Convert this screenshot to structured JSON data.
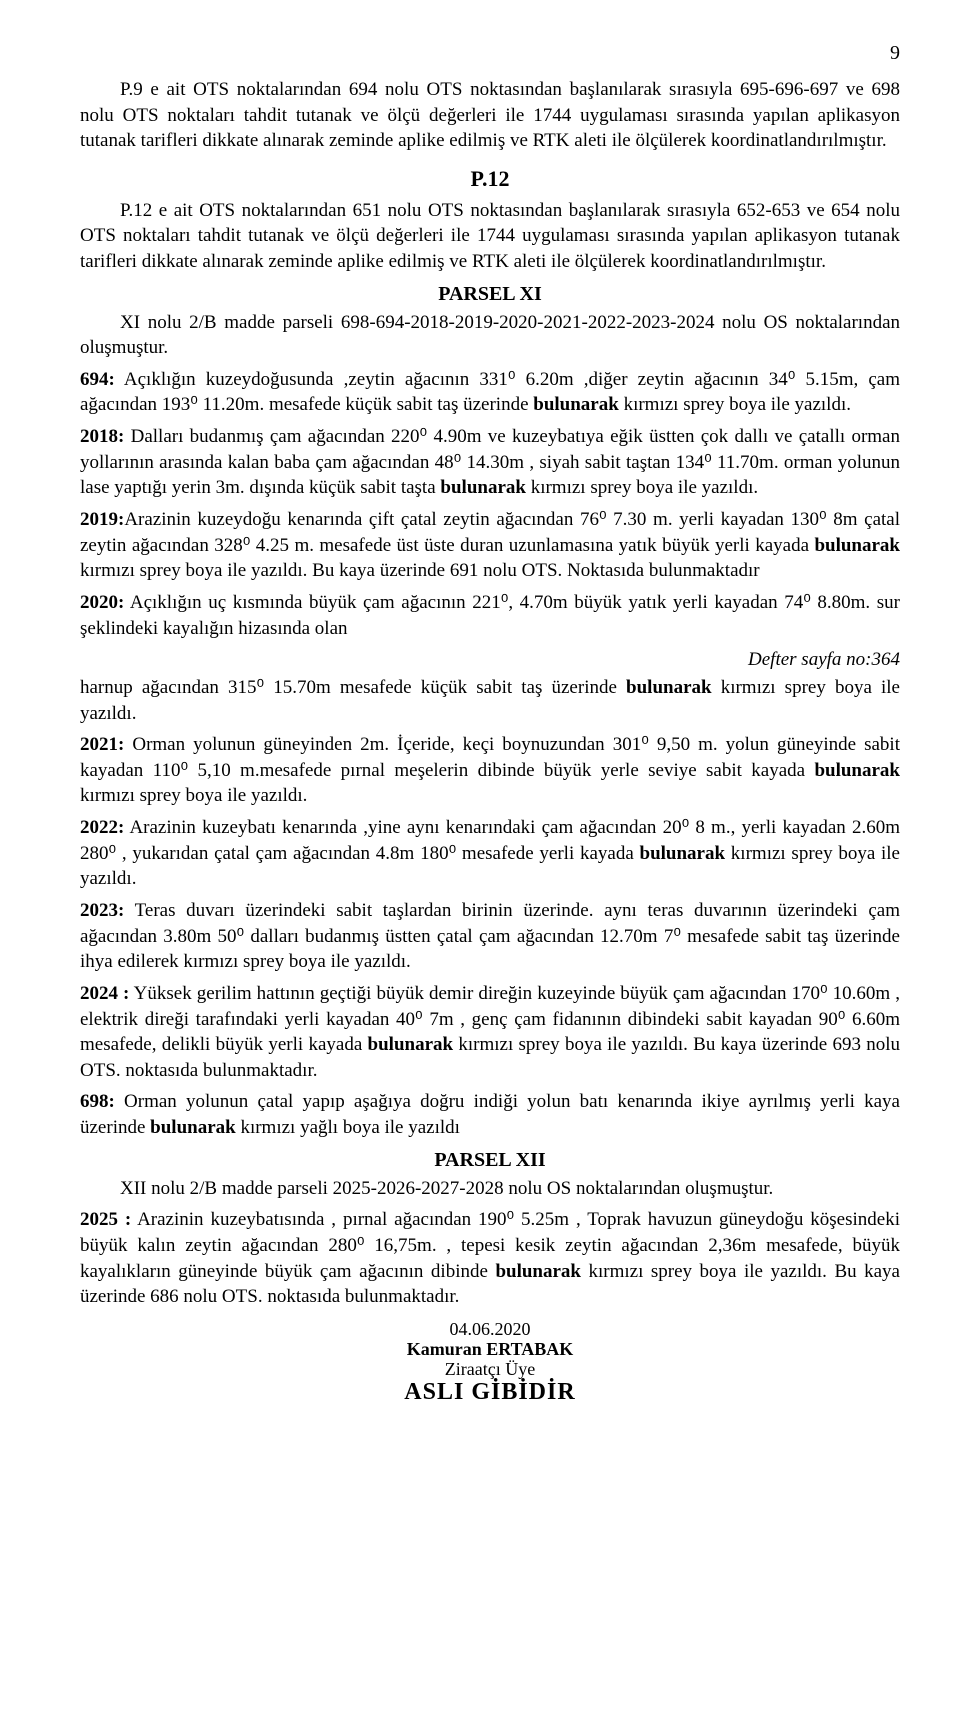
{
  "page_number": "9",
  "p9": "P.9 e ait OTS noktalarından 694 nolu OTS noktasından başlanılarak sırasıyla 695-696-697 ve 698 nolu OTS noktaları tahdit tutanak ve ölçü değerleri ile 1744 uygulaması sırasında yapılan aplikasyon tutanak tarifleri dikkate alınarak zeminde aplike edilmiş ve RTK aleti ile ölçülerek koordinatlandırılmıştır.",
  "heading_p12": "P.12",
  "p12": "P.12 e ait OTS noktalarından 651 nolu OTS noktasından başlanılarak sırasıyla 652-653 ve 654 nolu OTS noktaları tahdit tutanak ve ölçü değerleri ile 1744 uygulaması sırasında yapılan aplikasyon tutanak tarifleri dikkate alınarak zeminde aplike edilmiş ve RTK aleti ile ölçülerek koordinatlandırılmıştır.",
  "parsel_xi_heading": "PARSEL XI",
  "parsel_xi_intro": "XI nolu 2/B madde parseli 698-694-2018-2019-2020-2021-2022-2023-2024 nolu OS noktalarından oluşmuştur.",
  "e694_a": "694:",
  "e694_b": " Açıklığın kuzeydoğusunda ,zeytin ağacının 331⁰ 6.20m ,diğer zeytin ağacının 34⁰ 5.15m, çam ağacından 193⁰ 11.20m. mesafede küçük sabit taş üzerinde ",
  "e694_c": "bulunarak",
  "e694_d": " kırmızı sprey boya ile yazıldı.",
  "e2018_a": "2018:",
  "e2018_b": " Dalları budanmış çam ağacından 220⁰ 4.90m ve kuzeybatıya eğik üstten çok dallı ve çatallı orman yollarının arasında kalan baba çam ağacından 48⁰ 14.30m , siyah sabit taştan 134⁰ 11.70m. orman yolunun lase yaptığı yerin 3m. dışında küçük sabit taşta ",
  "e2018_c": "bulunarak",
  "e2018_d": " kırmızı sprey boya ile yazıldı.",
  "e2019_a": "2019:",
  "e2019_b": "Arazinin kuzeydoğu kenarında çift çatal zeytin ağacından 76⁰ 7.30 m. yerli kayadan 130⁰ 8m çatal zeytin ağacından 328⁰ 4.25 m. mesafede üst üste duran uzunlamasına yatık büyük yerli kayada ",
  "e2019_c": "bulunarak",
  "e2019_d": " kırmızı sprey boya ile yazıldı. Bu kaya üzerinde 691 nolu OTS. Noktasıda bulunmaktadır",
  "e2020_a": "2020:",
  "e2020_b": " Açıklığın uç kısmında büyük çam ağacının 221⁰, 4.70m büyük yatık yerli kayadan 74⁰ 8.80m. sur şeklindeki kayalığın hizasında olan",
  "defter": "Defter sayfa no:364",
  "e2020_cont_a": "harnup ağacından 315⁰ 15.70m mesafede küçük sabit taş üzerinde ",
  "e2020_cont_b": "bulunarak",
  "e2020_cont_c": " kırmızı sprey boya ile yazıldı.",
  "e2021_a": "2021:",
  "e2021_b": " Orman yolunun güneyinden 2m. İçeride, keçi boynuzundan 301⁰ 9,50 m. yolun güneyinde sabit kayadan 110⁰ 5,10 m.mesafede pırnal meşelerin dibinde büyük yerle seviye sabit kayada ",
  "e2021_c": "bulunarak",
  "e2021_d": " kırmızı sprey boya ile yazıldı.",
  "e2022_a": "2022:",
  "e2022_b": " Arazinin kuzeybatı kenarında ,yine aynı kenarındaki çam ağacından 20⁰ 8 m., yerli kayadan 2.60m 280⁰ , yukarıdan çatal çam ağacından 4.8m 180⁰ mesafede yerli kayada ",
  "e2022_c": "bulunarak",
  "e2022_d": " kırmızı sprey boya ile yazıldı.",
  "e2023_a": "2023:",
  "e2023_b": "  Teras duvarı üzerindeki sabit taşlardan birinin üzerinde. aynı teras duvarının üzerindeki çam ağacından 3.80m 50⁰ dalları budanmış üstten çatal çam ağacından 12.70m 7⁰ mesafede sabit taş üzerinde ihya edilerek kırmızı sprey boya ile yazıldı.",
  "e2024_a": "2024 :",
  "e2024_b": " Yüksek gerilim hattının geçtiği büyük demir direğin kuzeyinde büyük çam ağacından 170⁰ 10.60m , elektrik direği tarafındaki yerli kayadan 40⁰ 7m , genç çam fidanının dibindeki sabit kayadan 90⁰ 6.60m mesafede, delikli büyük yerli kayada ",
  "e2024_c": "bulunarak",
  "e2024_d": " kırmızı sprey boya ile yazıldı. Bu kaya üzerinde 693 nolu OTS. noktasıda bulunmaktadır.",
  "e698_a": "698:",
  "e698_b": " Orman yolunun çatal yapıp aşağıya doğru indiği yolun batı kenarında ikiye ayrılmış yerli kaya üzerinde ",
  "e698_c": "bulunarak",
  "e698_d": " kırmızı yağlı boya ile yazıldı",
  "parsel_xii_heading": "PARSEL XII",
  "parsel_xii_intro": "XII nolu 2/B madde parseli 2025-2026-2027-2028 nolu OS noktalarından oluşmuştur.",
  "e2025_a": "2025 :",
  "e2025_b": " Arazinin kuzeybatısında , pırnal ağacından 190⁰ 5.25m , Toprak havuzun güneydoğu köşesindeki büyük kalın zeytin ağacından 280⁰ 16,75m. , tepesi kesik zeytin ağacından 2,36m mesafede, büyük kayalıkların güneyinde büyük çam ağacının dibinde ",
  "e2025_c": "bulunarak",
  "e2025_d": " kırmızı sprey boya ile yazıldı. Bu kaya üzerinde 686 nolu OTS. noktasıda bulunmaktadır.",
  "sig_date": "04.06.2020",
  "sig_name": "Kamuran ERTABAK",
  "sig_title": "Ziraatçı Üye",
  "sig_stamp": "ASLI GİBİDİR"
}
